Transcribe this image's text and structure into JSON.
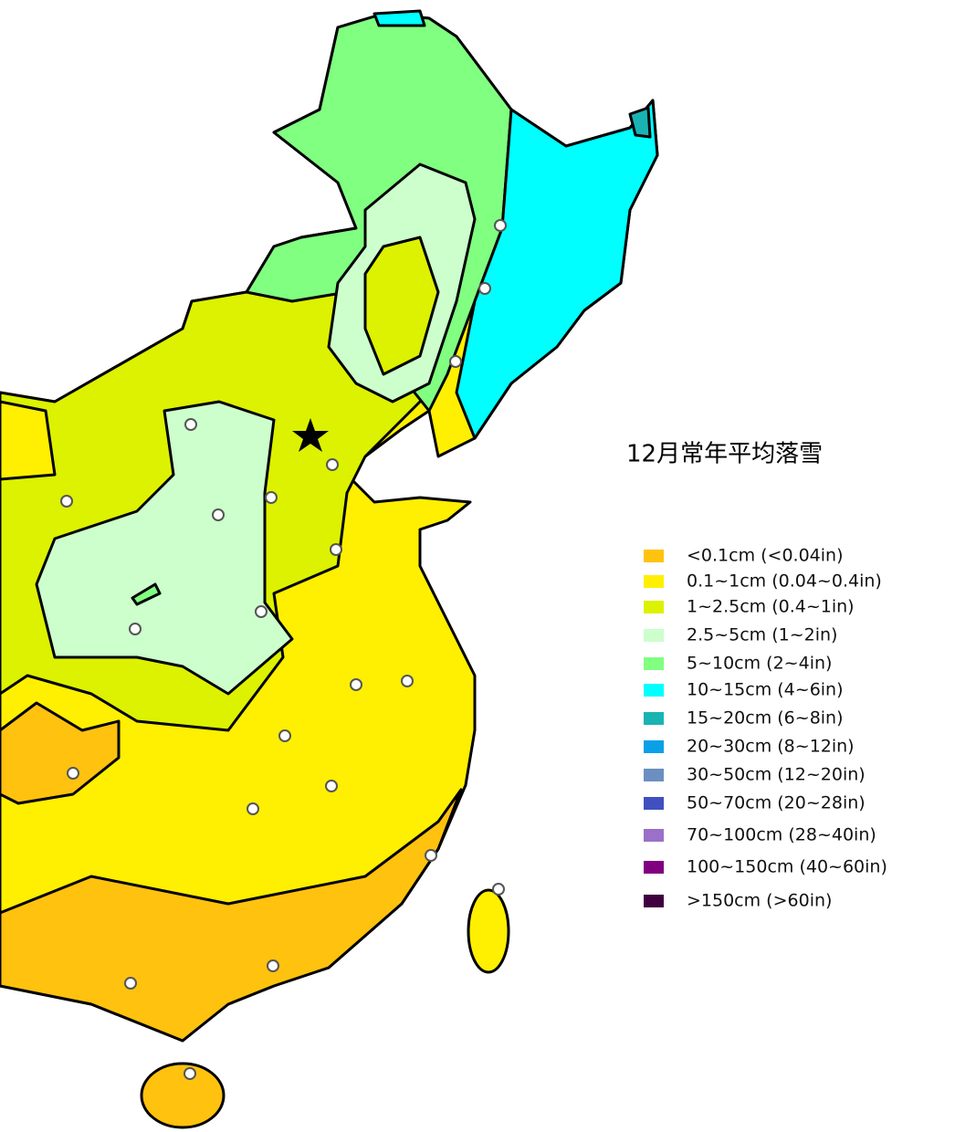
{
  "title": "12月常年平均落雪",
  "legend": [
    {
      "label": "<0.1cm (<0.04in)",
      "color": "#ffc20e"
    },
    {
      "label": "0.1~1cm (0.04~0.4in)",
      "color": "#ffef00"
    },
    {
      "label": "1~2.5cm (0.4~1in)",
      "color": "#dcf200"
    },
    {
      "label": "2.5~5cm (1~2in)",
      "color": "#ccffcc"
    },
    {
      "label": "5~10cm (2~4in)",
      "color": "#80ff80"
    },
    {
      "label": "10~15cm (4~6in)",
      "color": "#00ffff"
    },
    {
      "label": "15~20cm (6~8in)",
      "color": "#1ab3b3"
    },
    {
      "label": "20~30cm (8~12in)",
      "color": "#0aa0e8"
    },
    {
      "label": "30~50cm (12~20in)",
      "color": "#6a8fc0"
    },
    {
      "label": "50~70cm (20~28in)",
      "color": "#4050c0"
    },
    {
      "label": "70~100cm (28~40in)",
      "color": "#9a70c8"
    },
    {
      "label": "100~150cm (40~60in)",
      "color": "#800080"
    },
    {
      "label": ">150cm (>60in)",
      "color": "#400040"
    }
  ]
}
